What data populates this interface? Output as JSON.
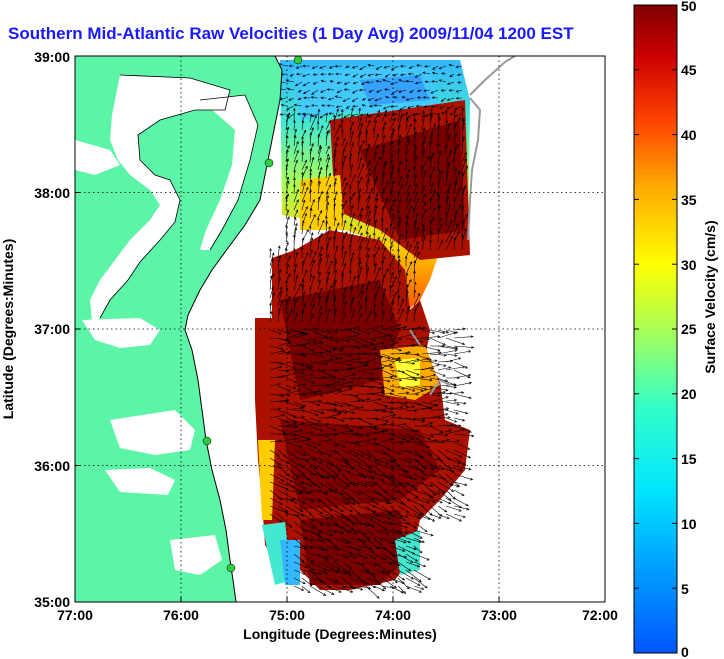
{
  "title": "Southern Mid-Atlantic Raw Velocities (1 Day Avg) 2009/11/04 1200 EST",
  "x_axis": {
    "label": "Longitude (Degrees:Minutes)",
    "ticks": [
      "77:00",
      "76:00",
      "75:00",
      "74:00",
      "73:00",
      "72:00"
    ]
  },
  "y_axis": {
    "label": "Latitude (Degrees:Minutes)",
    "ticks": [
      "39:00",
      "38:00",
      "37:00",
      "36:00",
      "35:00"
    ]
  },
  "colorbar": {
    "label": "Surface Velocity (cm/s)",
    "ticks": [
      "50",
      "45",
      "40",
      "35",
      "30",
      "25",
      "20",
      "15",
      "10",
      "5",
      "0"
    ],
    "min": 0,
    "max": 50,
    "colormap": "jet"
  },
  "colors": {
    "land": "#5cf5a8",
    "title": "#1a1aff",
    "station_marker": "#2ecc40",
    "arrow": "#000000"
  }
}
